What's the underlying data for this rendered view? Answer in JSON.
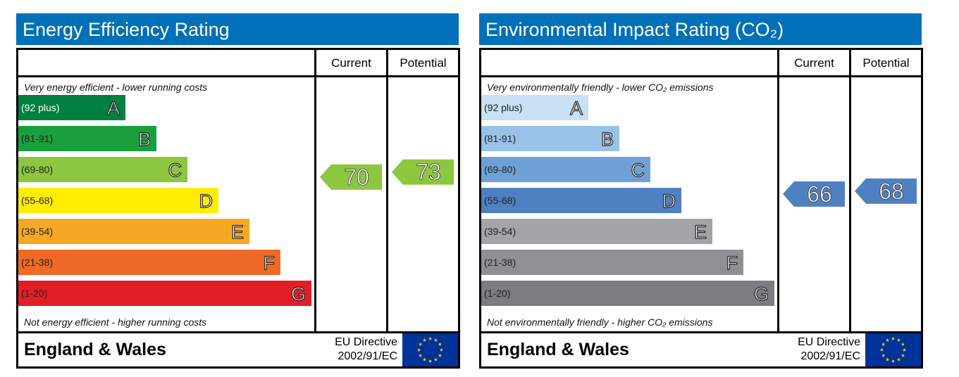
{
  "energy": {
    "title": "Energy Efficiency Rating",
    "col_current": "Current",
    "col_potential": "Potential",
    "top_caption": "Very energy efficient - lower running costs",
    "bottom_caption": "Not energy efficient - higher running costs",
    "footer_region": "England & Wales",
    "directive_line1": "EU Directive",
    "directive_line2": "2002/91/EC"
  },
  "environment": {
    "title": "Environmental Impact Rating (CO₂)",
    "col_current": "Current",
    "col_potential": "Potential",
    "top_caption": "Very environmentally friendly - lower CO₂ emissions",
    "bottom_caption": "Not environmentally friendly - higher CO₂ emissions",
    "footer_region": "England & Wales",
    "directive_line1": "EU Directive",
    "directive_line2": "2002/91/EC"
  },
  "chart_data": [
    {
      "type": "bar",
      "title": "Energy Efficiency Rating",
      "bands": [
        {
          "letter": "A",
          "range": "(92 plus)",
          "color": "#008040"
        },
        {
          "letter": "B",
          "range": "(81-91)",
          "color": "#19a03c"
        },
        {
          "letter": "C",
          "range": "(69-80)",
          "color": "#8dc63f"
        },
        {
          "letter": "D",
          "range": "(55-68)",
          "color": "#ffed00"
        },
        {
          "letter": "E",
          "range": "(39-54)",
          "color": "#f7a823"
        },
        {
          "letter": "F",
          "range": "(21-38)",
          "color": "#ef6a26"
        },
        {
          "letter": "G",
          "range": "(1-20)",
          "color": "#e31d25"
        }
      ],
      "current": {
        "value": 70,
        "band": "C",
        "color": "#8dc63f"
      },
      "potential": {
        "value": 73,
        "band": "C",
        "color": "#8dc63f"
      }
    },
    {
      "type": "bar",
      "title": "Environmental Impact Rating (CO₂)",
      "bands": [
        {
          "letter": "A",
          "range": "(92 plus)",
          "color": "#c9e0f5"
        },
        {
          "letter": "B",
          "range": "(81-91)",
          "color": "#98c2e8"
        },
        {
          "letter": "C",
          "range": "(69-80)",
          "color": "#6fa1d7"
        },
        {
          "letter": "D",
          "range": "(55-68)",
          "color": "#4f80c2"
        },
        {
          "letter": "E",
          "range": "(39-54)",
          "color": "#a2a4a6"
        },
        {
          "letter": "F",
          "range": "(21-38)",
          "color": "#8e9093"
        },
        {
          "letter": "G",
          "range": "(1-20)",
          "color": "#7c7d80"
        }
      ],
      "current": {
        "value": 66,
        "band": "D",
        "color": "#4f80c2"
      },
      "potential": {
        "value": 68,
        "band": "D",
        "color": "#4f80c2"
      }
    }
  ]
}
